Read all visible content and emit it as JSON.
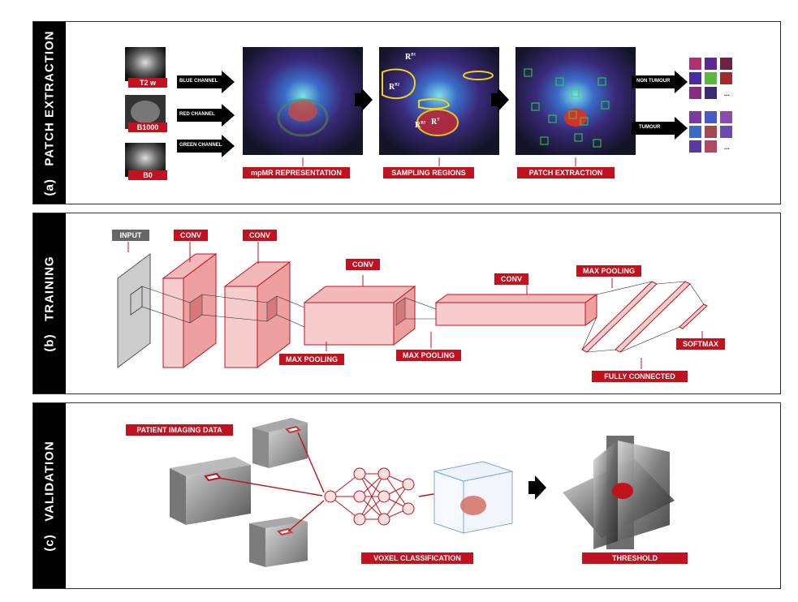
{
  "sections": {
    "a": {
      "letter": "(a)",
      "title": "PATCH EXTRACTION"
    },
    "b": {
      "letter": "(b)",
      "title": "TRAINING"
    },
    "c": {
      "letter": "(c)",
      "title": "VALIDATION"
    }
  },
  "patch": {
    "inputs": [
      "T2 w",
      "B1000",
      "B0"
    ],
    "channels": [
      "BLUE CHANNEL",
      "RED CHANNEL",
      "GREEN CHANNEL"
    ],
    "stages": [
      "mpMR REPRESENTATION",
      "SAMPLING REGIONS",
      "PATCH EXTRACTION"
    ],
    "region_labels": [
      "R",
      "R",
      "R",
      "R"
    ],
    "region_subs": [
      "B1",
      "B2",
      "B3",
      "T"
    ],
    "outputs": [
      "NON TUMOUR",
      "TUMOUR"
    ],
    "ellipsis": "..."
  },
  "training": {
    "input": "INPUT",
    "conv1": "CONV",
    "conv2": "CONV",
    "conv3": "CONV",
    "conv4": "CONV",
    "pool1": "MAX POOLING",
    "pool2": "MAX POOLING",
    "pool3": "MAX POOLING",
    "fc": "FULLY CONNECTED",
    "softmax": "SOFTMAX"
  },
  "validation": {
    "patient": "PATIENT IMAGING DATA",
    "voxel": "VOXEL CLASSIFICATION",
    "threshold": "THRESHOLD"
  },
  "colors": {
    "accent": "#c1121f",
    "box_fill": "#f6cccc",
    "box_stroke": "#c1121f",
    "patch_green": "#22dd44",
    "region_yellow": "#f2d21a"
  }
}
